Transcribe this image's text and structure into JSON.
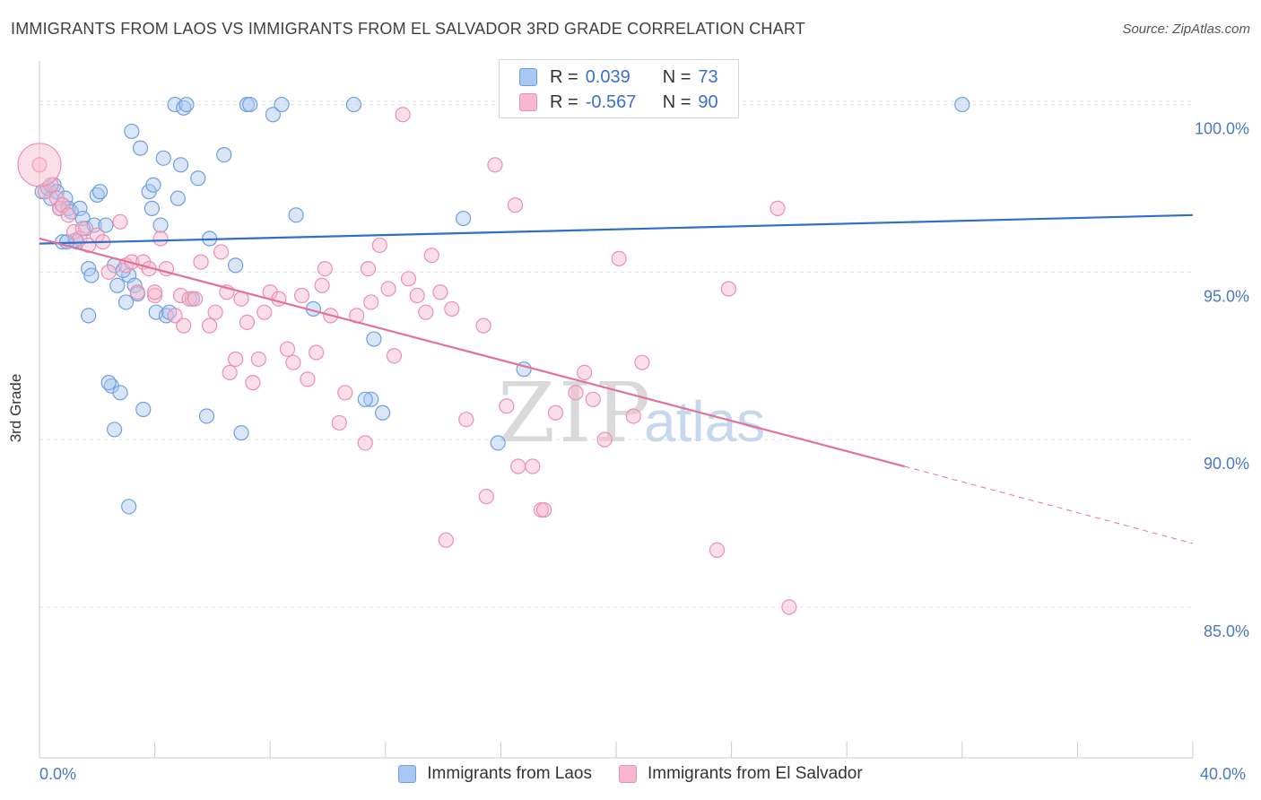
{
  "title": "IMMIGRANTS FROM LAOS VS IMMIGRANTS FROM EL SALVADOR 3RD GRADE CORRELATION CHART",
  "source": "Source: ZipAtlas.com",
  "watermark": {
    "zip": "ZIP",
    "atlas": "atlas"
  },
  "colors": {
    "laos_fill": "#a9c7f0",
    "laos_stroke": "#6f9fe0",
    "laos_line": "#2f6fc8",
    "els_fill": "#f7b8cd",
    "els_stroke": "#ec8fb0",
    "els_line": "#e2729a",
    "grid": "#e3e3e3",
    "axis_text": "#4a78c2"
  },
  "legend": {
    "laos": {
      "r_label": "R =",
      "r_value": "0.039",
      "n_label": "N =",
      "n_value": "73"
    },
    "els": {
      "r_label": "R =",
      "r_value": "-0.567",
      "n_label": "N =",
      "n_value": "90"
    }
  },
  "chart_data": {
    "type": "scatter",
    "title": "IMMIGRANTS FROM LAOS VS IMMIGRANTS FROM EL SALVADOR 3RD GRADE CORRELATION CHART",
    "xlabel": "",
    "ylabel": "3rd Grade",
    "xlim": [
      0,
      40
    ],
    "ylim": [
      80.5,
      101.3
    ],
    "x_tick_labels": [
      "0.0%",
      "40.0%"
    ],
    "y_ticks": [
      85,
      90,
      95,
      100
    ],
    "y_tick_labels": [
      "85.0%",
      "90.0%",
      "95.0%",
      "100.0%"
    ],
    "grid": true,
    "legend_position": "top-center",
    "series": [
      {
        "name": "Immigrants from Laos",
        "trend": {
          "x": [
            0,
            40
          ],
          "y": [
            95.85,
            96.7
          ]
        },
        "points": [
          [
            0.1,
            97.4
          ],
          [
            0.3,
            97.5
          ],
          [
            0.4,
            97.2
          ],
          [
            0.5,
            97.6
          ],
          [
            0.6,
            97.4
          ],
          [
            0.7,
            96.9
          ],
          [
            0.8,
            95.9
          ],
          [
            0.9,
            97.2
          ],
          [
            1.0,
            96.9
          ],
          [
            1.1,
            96.8
          ],
          [
            1.3,
            95.9
          ],
          [
            1.4,
            96.9
          ],
          [
            1.5,
            96.6
          ],
          [
            1.6,
            96.3
          ],
          [
            1.7,
            95.1
          ],
          [
            1.8,
            94.9
          ],
          [
            1.9,
            96.4
          ],
          [
            2.0,
            97.3
          ],
          [
            2.1,
            97.4
          ],
          [
            2.3,
            96.4
          ],
          [
            2.5,
            91.6
          ],
          [
            2.6,
            95.2
          ],
          [
            2.7,
            94.6
          ],
          [
            2.8,
            91.4
          ],
          [
            3.0,
            94.1
          ],
          [
            3.1,
            94.9
          ],
          [
            3.2,
            99.2
          ],
          [
            3.3,
            94.6
          ],
          [
            3.5,
            98.7
          ],
          [
            3.6,
            90.9
          ],
          [
            3.8,
            97.4
          ],
          [
            3.9,
            96.9
          ],
          [
            3.95,
            97.6
          ],
          [
            4.05,
            93.8
          ],
          [
            4.2,
            96.4
          ],
          [
            4.3,
            98.4
          ],
          [
            4.4,
            93.7
          ],
          [
            4.5,
            93.8
          ],
          [
            4.7,
            100.0
          ],
          [
            4.8,
            97.2
          ],
          [
            4.9,
            98.2
          ],
          [
            5.0,
            99.9
          ],
          [
            5.1,
            100.0
          ],
          [
            5.3,
            94.2
          ],
          [
            5.5,
            97.8
          ],
          [
            5.8,
            90.7
          ],
          [
            5.9,
            96.0
          ],
          [
            6.4,
            98.5
          ],
          [
            6.8,
            95.2
          ],
          [
            7.0,
            90.2
          ],
          [
            7.2,
            100.0
          ],
          [
            7.3,
            100.0
          ],
          [
            8.1,
            99.7
          ],
          [
            8.4,
            100.0
          ],
          [
            8.9,
            96.7
          ],
          [
            9.5,
            93.9
          ],
          [
            10.9,
            100.0
          ],
          [
            11.6,
            93.0
          ],
          [
            11.5,
            91.2
          ],
          [
            11.9,
            90.8
          ],
          [
            2.4,
            91.7
          ],
          [
            1.25,
            95.95
          ],
          [
            0.95,
            95.9
          ],
          [
            3.1,
            88.0
          ],
          [
            2.6,
            90.3
          ],
          [
            11.3,
            91.2
          ],
          [
            14.7,
            96.6
          ],
          [
            15.9,
            89.9
          ],
          [
            16.8,
            92.1
          ],
          [
            32.0,
            100.0
          ],
          [
            2.9,
            95.05
          ],
          [
            1.7,
            93.7
          ],
          [
            3.4,
            94.35
          ]
        ]
      },
      {
        "name": "Immigrants from El Salvador",
        "trend": {
          "x": [
            0,
            30
          ],
          "y": [
            96.0,
            89.2
          ]
        },
        "trend_dashed": {
          "x": [
            30,
            40
          ],
          "y": [
            89.2,
            86.9
          ]
        },
        "points": [
          [
            0.0,
            98.2
          ],
          [
            0.2,
            97.4
          ],
          [
            0.4,
            97.6
          ],
          [
            0.6,
            97.2
          ],
          [
            0.7,
            96.9
          ],
          [
            0.8,
            97.0
          ],
          [
            1.0,
            96.7
          ],
          [
            1.2,
            96.2
          ],
          [
            1.4,
            96.0
          ],
          [
            1.5,
            96.3
          ],
          [
            1.7,
            95.8
          ],
          [
            2.0,
            96.1
          ],
          [
            2.2,
            95.9
          ],
          [
            2.4,
            95.0
          ],
          [
            2.8,
            96.5
          ],
          [
            3.0,
            95.2
          ],
          [
            3.2,
            95.3
          ],
          [
            3.4,
            94.4
          ],
          [
            3.6,
            95.3
          ],
          [
            3.8,
            95.1
          ],
          [
            4.0,
            94.3
          ],
          [
            4.2,
            96.0
          ],
          [
            4.4,
            95.1
          ],
          [
            4.7,
            93.7
          ],
          [
            4.9,
            94.3
          ],
          [
            5.0,
            93.4
          ],
          [
            5.2,
            94.2
          ],
          [
            5.4,
            94.2
          ],
          [
            5.6,
            95.3
          ],
          [
            5.9,
            93.4
          ],
          [
            6.1,
            93.8
          ],
          [
            6.3,
            95.6
          ],
          [
            6.5,
            94.4
          ],
          [
            6.6,
            92.0
          ],
          [
            6.8,
            92.4
          ],
          [
            7.0,
            94.2
          ],
          [
            7.2,
            93.5
          ],
          [
            7.4,
            91.7
          ],
          [
            7.6,
            92.4
          ],
          [
            7.8,
            93.8
          ],
          [
            8.0,
            94.4
          ],
          [
            8.3,
            94.2
          ],
          [
            8.6,
            92.7
          ],
          [
            8.8,
            92.3
          ],
          [
            9.1,
            94.3
          ],
          [
            9.3,
            91.8
          ],
          [
            9.6,
            92.6
          ],
          [
            9.8,
            94.6
          ],
          [
            10.1,
            93.7
          ],
          [
            10.4,
            90.5
          ],
          [
            10.6,
            91.4
          ],
          [
            11.0,
            93.7
          ],
          [
            11.3,
            89.9
          ],
          [
            11.5,
            94.1
          ],
          [
            11.8,
            95.8
          ],
          [
            12.1,
            94.5
          ],
          [
            12.3,
            92.5
          ],
          [
            12.8,
            94.8
          ],
          [
            13.1,
            94.3
          ],
          [
            13.4,
            93.8
          ],
          [
            13.6,
            95.5
          ],
          [
            13.9,
            94.4
          ],
          [
            14.3,
            93.9
          ],
          [
            14.8,
            90.6
          ],
          [
            15.4,
            93.4
          ],
          [
            15.8,
            98.2
          ],
          [
            16.2,
            91.0
          ],
          [
            16.6,
            89.2
          ],
          [
            17.1,
            89.2
          ],
          [
            17.4,
            87.9
          ],
          [
            17.9,
            90.8
          ],
          [
            18.6,
            91.4
          ],
          [
            18.9,
            92.0
          ],
          [
            19.2,
            91.2
          ],
          [
            19.6,
            90.0
          ],
          [
            20.1,
            95.4
          ],
          [
            20.6,
            90.7
          ],
          [
            20.9,
            92.3
          ],
          [
            23.5,
            86.7
          ],
          [
            23.9,
            94.5
          ],
          [
            25.6,
            96.9
          ],
          [
            26.0,
            85.0
          ],
          [
            12.6,
            99.7
          ],
          [
            16.5,
            97.0
          ],
          [
            14.1,
            87.0
          ],
          [
            15.5,
            88.3
          ],
          [
            11.4,
            95.1
          ],
          [
            9.9,
            95.1
          ],
          [
            4.0,
            94.4
          ],
          [
            17.5,
            87.9
          ]
        ]
      }
    ]
  }
}
